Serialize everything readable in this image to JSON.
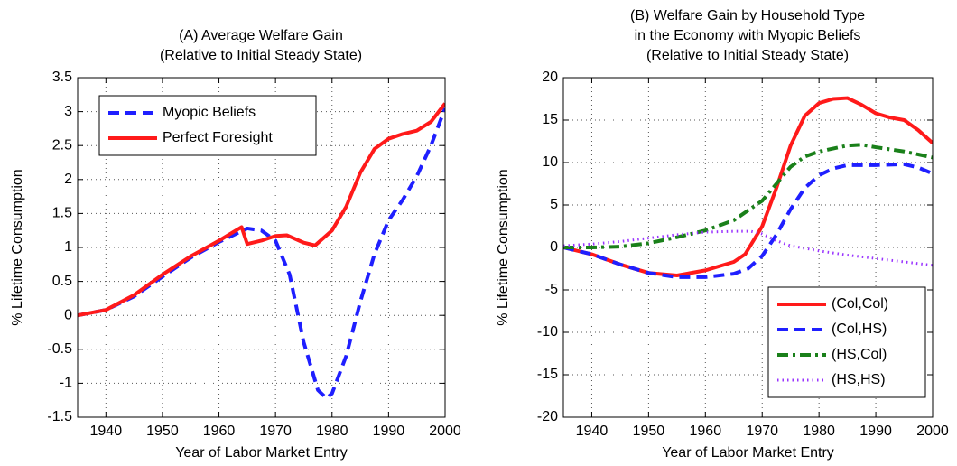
{
  "chart_data": [
    {
      "type": "line",
      "title_lines": [
        "(A)  Average Welfare Gain",
        "(Relative to Initial Steady State)"
      ],
      "xlabel": "Year of Labor Market Entry",
      "ylabel": "% Lifetime Consumption",
      "xlim": [
        1935,
        2000
      ],
      "xticks": [
        1940,
        1950,
        1960,
        1970,
        1980,
        1990,
        2000
      ],
      "ylim": [
        -1.5,
        3.5
      ],
      "yticks": [
        -1.5,
        -1,
        -0.5,
        0,
        0.5,
        1,
        1.5,
        2,
        2.5,
        3,
        3.5
      ],
      "grid": true,
      "legend": "upper left",
      "series": [
        {
          "name": "Myopic Beliefs",
          "color": "#1f1fff",
          "style": "dashed",
          "x": [
            1935,
            1940,
            1945,
            1950,
            1955,
            1960,
            1965,
            1967.5,
            1970,
            1972.5,
            1975,
            1977.5,
            1979,
            1980,
            1982.5,
            1985,
            1987.5,
            1990,
            1992.5,
            1995,
            1997.5,
            2000
          ],
          "values": [
            0,
            0.08,
            0.28,
            0.57,
            0.85,
            1.08,
            1.28,
            1.25,
            1.1,
            0.6,
            -0.4,
            -1.1,
            -1.22,
            -1.15,
            -0.6,
            0.2,
            0.9,
            1.4,
            1.7,
            2.05,
            2.5,
            3.05
          ]
        },
        {
          "name": "Perfect Foresight",
          "color": "#ff1a1a",
          "style": "solid",
          "x": [
            1935,
            1940,
            1945,
            1950,
            1955,
            1960,
            1964,
            1965,
            1967.5,
            1970,
            1972,
            1975,
            1977,
            1980,
            1982.5,
            1985,
            1987.5,
            1990,
            1992.5,
            1995,
            1997.5,
            2000
          ],
          "values": [
            0,
            0.08,
            0.3,
            0.6,
            0.87,
            1.1,
            1.3,
            1.05,
            1.1,
            1.17,
            1.18,
            1.07,
            1.03,
            1.25,
            1.6,
            2.1,
            2.45,
            2.6,
            2.67,
            2.72,
            2.85,
            3.12
          ]
        }
      ]
    },
    {
      "type": "line",
      "title_lines": [
        "(B) Welfare Gain by Household Type",
        "in the Economy with Myopic Beliefs",
        "(Relative to Initial Steady State)"
      ],
      "xlabel": "Year of Labor Market Entry",
      "ylabel": "% Lifetime Consumption",
      "xlim": [
        1935,
        2000
      ],
      "xticks": [
        1940,
        1950,
        1960,
        1970,
        1980,
        1990,
        2000
      ],
      "ylim": [
        -20,
        20
      ],
      "yticks": [
        -20,
        -15,
        -10,
        -5,
        0,
        5,
        10,
        15,
        20
      ],
      "grid": true,
      "legend": "lower right",
      "series": [
        {
          "name": "(Col,Col)",
          "color": "#ff1a1a",
          "style": "solid",
          "x": [
            1935,
            1940,
            1945,
            1950,
            1955,
            1960,
            1965,
            1967,
            1970,
            1972.5,
            1975,
            1977.5,
            1980,
            1982.5,
            1985,
            1987.5,
            1990,
            1992.5,
            1995,
            1997.5,
            2000
          ],
          "values": [
            0,
            -0.8,
            -2,
            -3,
            -3.3,
            -2.7,
            -1.7,
            -0.8,
            2.5,
            7,
            12,
            15.5,
            17,
            17.5,
            17.6,
            16.8,
            15.8,
            15.3,
            15,
            13.8,
            12.3
          ]
        },
        {
          "name": "(Col,HS)",
          "color": "#1f1fff",
          "style": "dashed",
          "x": [
            1935,
            1940,
            1945,
            1950,
            1955,
            1960,
            1965,
            1967.5,
            1970,
            1972.5,
            1975,
            1977.5,
            1980,
            1982.5,
            1985,
            1990,
            1995,
            1997.5,
            2000
          ],
          "values": [
            0,
            -0.8,
            -2,
            -3,
            -3.5,
            -3.5,
            -3.1,
            -2.5,
            -1,
            1.5,
            4.5,
            7,
            8.5,
            9.3,
            9.7,
            9.7,
            9.8,
            9.4,
            8.7
          ]
        },
        {
          "name": "(HS,Col)",
          "color": "#1a801a",
          "style": "dashdot",
          "x": [
            1935,
            1940,
            1945,
            1950,
            1955,
            1960,
            1965,
            1970,
            1972.5,
            1975,
            1977.5,
            1980,
            1985,
            1987.5,
            1990,
            1995,
            2000
          ],
          "values": [
            0,
            0,
            0.1,
            0.5,
            1.2,
            2,
            3.2,
            5.5,
            7.5,
            9.5,
            10.7,
            11.3,
            12,
            12.1,
            11.8,
            11.3,
            10.6
          ]
        },
        {
          "name": "(HS,HS)",
          "color": "#9933ff",
          "style": "dotted",
          "x": [
            1935,
            1940,
            1945,
            1950,
            1955,
            1960,
            1965,
            1968,
            1970,
            1972.5,
            1975,
            1980,
            1985,
            1990,
            1995,
            2000
          ],
          "values": [
            0.2,
            0.4,
            0.7,
            1.1,
            1.5,
            1.8,
            1.9,
            1.9,
            1.6,
            0.8,
            0.2,
            -0.4,
            -0.9,
            -1.3,
            -1.7,
            -2.1
          ]
        }
      ]
    }
  ]
}
